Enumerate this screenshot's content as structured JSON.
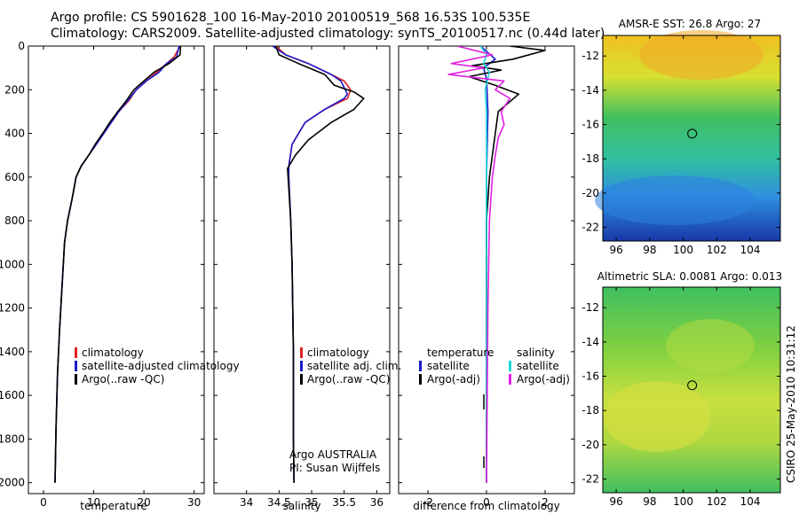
{
  "title_line1": "Argo profile: CS 5901628_100 16-May-2010 20100519_568 16.53S 100.535E",
  "title_line2": "Climatology: CARS2009. Satellite-adjusted climatology: synTS_20100517.nc (0.44d later)",
  "side_credit": "CSIRO 25-May-2010 10:31:12",
  "chart_data": [
    {
      "type": "line",
      "xlabel": "temperature",
      "xlim": [
        -3,
        32
      ],
      "xticks": [
        0,
        10,
        20,
        30
      ],
      "ylim": [
        2050,
        0
      ],
      "yticks": [
        0,
        200,
        400,
        600,
        800,
        1000,
        1200,
        1400,
        1600,
        1800,
        2000
      ],
      "legend": [
        "climatology",
        "satellite-adjusted climatology",
        "Argo(..raw -QC)"
      ],
      "series": [
        {
          "name": "climatology",
          "color": "#e02020",
          "x": [
            27.2,
            26.0,
            24.5,
            22.5,
            20.5,
            18.5,
            17.0,
            15.0,
            13.5,
            12.0,
            10.5,
            9.0,
            7.5,
            6.5,
            5.7,
            4.8,
            4.2,
            3.7,
            3.2,
            2.8,
            2.5,
            2.3
          ],
          "y": [
            0,
            50,
            80,
            120,
            160,
            200,
            250,
            300,
            350,
            400,
            450,
            500,
            550,
            600,
            700,
            800,
            900,
            1100,
            1300,
            1500,
            1750,
            2000
          ]
        },
        {
          "name": "satellite-adjusted climatology",
          "color": "#1a1acc",
          "x": [
            27.0,
            26.5,
            24.5,
            23.0,
            20.5,
            18.5,
            16.8,
            15.0,
            13.5,
            12.0,
            10.5,
            9.0,
            7.5,
            6.5,
            5.7,
            4.8,
            4.2,
            3.7,
            3.2,
            2.8,
            2.5,
            2.3
          ],
          "y": [
            0,
            50,
            80,
            120,
            160,
            200,
            250,
            300,
            350,
            400,
            450,
            500,
            550,
            600,
            700,
            800,
            900,
            1100,
            1300,
            1500,
            1750,
            2000
          ]
        },
        {
          "name": "Argo(..raw -QC)",
          "color": "#000000",
          "x": [
            27.3,
            27.2,
            25.0,
            22.0,
            20.0,
            18.0,
            16.5,
            14.8,
            13.2,
            11.8,
            10.3,
            9.0,
            7.5,
            6.5,
            5.7,
            4.8,
            4.2,
            3.7,
            3.2,
            2.8,
            2.5,
            2.3
          ],
          "y": [
            0,
            40,
            80,
            120,
            160,
            200,
            250,
            300,
            350,
            400,
            450,
            500,
            550,
            600,
            700,
            800,
            900,
            1100,
            1300,
            1500,
            1750,
            2000
          ]
        }
      ]
    },
    {
      "type": "line",
      "xlabel": "salinity",
      "xlim": [
        33.5,
        36.2
      ],
      "xticks": [
        34,
        34.5,
        35,
        35.5,
        36
      ],
      "ylim": [
        2050,
        0
      ],
      "legend": [
        "climatology",
        "satellite adj. clim.",
        "Argo(..raw -QC)"
      ],
      "annotation": [
        "Argo AUSTRALIA",
        "PI: Susan Wijffels"
      ],
      "series": [
        {
          "name": "climatology",
          "color": "#e02020",
          "x": [
            34.45,
            34.6,
            34.95,
            35.3,
            35.5,
            35.6,
            35.55,
            35.2,
            34.9,
            34.7,
            34.65,
            34.65,
            34.68,
            34.7,
            34.72,
            34.72,
            34.73
          ],
          "y": [
            0,
            40,
            80,
            130,
            160,
            200,
            240,
            290,
            350,
            450,
            550,
            600,
            800,
            1000,
            1400,
            1800,
            2000
          ]
        },
        {
          "name": "satellite adj. clim.",
          "color": "#1a1acc",
          "x": [
            34.4,
            34.6,
            34.95,
            35.3,
            35.45,
            35.55,
            35.5,
            35.2,
            34.9,
            34.7,
            34.65,
            34.65,
            34.68,
            34.7,
            34.72,
            34.72,
            34.73
          ],
          "y": [
            0,
            40,
            80,
            130,
            160,
            220,
            240,
            290,
            350,
            450,
            550,
            600,
            800,
            1000,
            1400,
            1800,
            2000
          ]
        },
        {
          "name": "Argo(..raw -QC)",
          "color": "#000000",
          "x": [
            34.45,
            34.5,
            34.8,
            35.2,
            35.35,
            35.65,
            35.8,
            35.65,
            35.3,
            34.95,
            34.75,
            34.63,
            34.68,
            34.7,
            34.72,
            34.72,
            34.73
          ],
          "y": [
            0,
            40,
            80,
            130,
            180,
            210,
            240,
            290,
            350,
            430,
            500,
            560,
            800,
            1000,
            1400,
            1800,
            2000
          ]
        }
      ]
    },
    {
      "type": "line",
      "xlabel": "difference from climatology",
      "xlim": [
        -3,
        3
      ],
      "xticks": [
        -2,
        0,
        2
      ],
      "ylim": [
        2050,
        0
      ],
      "legend_temperature": [
        "temperature",
        "satellite",
        "Argo(-adj)"
      ],
      "legend_salinity": [
        "salinity",
        "satellite",
        "Argo(-adj)"
      ],
      "series": [
        {
          "name": "temperature satellite",
          "color": "#1a1acc",
          "x": [
            -0.2,
            0.3,
            -0.1,
            0.0,
            0.05,
            0.0,
            0.0,
            0.0
          ],
          "y": [
            0,
            60,
            100,
            150,
            300,
            600,
            1200,
            2000
          ]
        },
        {
          "name": "temperature Argo(-adj)",
          "color": "#000000",
          "x": [
            0.8,
            2.0,
            0.9,
            -0.5,
            0.5,
            -0.6,
            0.3,
            1.1,
            0.4,
            0.3,
            0.2,
            0.1,
            0.0,
            0.0,
            0.0
          ],
          "y": [
            0,
            20,
            60,
            90,
            110,
            140,
            180,
            220,
            300,
            400,
            500,
            600,
            800,
            1200,
            2000
          ]
        },
        {
          "name": "salinity satellite",
          "color": "#20d8d8",
          "x": [
            -0.2,
            0.0,
            -0.1,
            0.1,
            -0.05,
            0.0,
            0.0,
            0.0
          ],
          "y": [
            0,
            40,
            80,
            120,
            200,
            300,
            600,
            2000
          ]
        },
        {
          "name": "salinity Argo(-adj)",
          "color": "#e020e0",
          "x": [
            -1.0,
            0.2,
            -1.2,
            -0.1,
            -1.3,
            0.6,
            0.3,
            0.8,
            0.5,
            0.6,
            0.4,
            0.3,
            0.2,
            0.1,
            0.05,
            0.0
          ],
          "y": [
            0,
            40,
            80,
            100,
            130,
            160,
            200,
            240,
            300,
            360,
            420,
            500,
            600,
            800,
            1200,
            2000
          ]
        }
      ]
    },
    {
      "type": "heatmap",
      "title": "AMSR-E SST: 26.8  Argo: 27",
      "xticks": [
        96,
        98,
        100,
        102,
        104
      ],
      "yticks": [
        -12,
        -14,
        -16,
        -18,
        -20,
        -22
      ],
      "xlim": [
        95.2,
        105.8
      ],
      "ylim": [
        -22.8,
        -10.8
      ],
      "marker": [
        100.535,
        -16.53
      ]
    },
    {
      "type": "heatmap",
      "title": "Altimetric SLA: 0.0081  Argo: 0.013",
      "xticks": [
        96,
        98,
        100,
        102,
        104
      ],
      "yticks": [
        -12,
        -14,
        -16,
        -18,
        -20,
        -22
      ],
      "xlim": [
        95.2,
        105.8
      ],
      "ylim": [
        -22.8,
        -10.8
      ],
      "marker": [
        100.535,
        -16.53
      ]
    }
  ]
}
